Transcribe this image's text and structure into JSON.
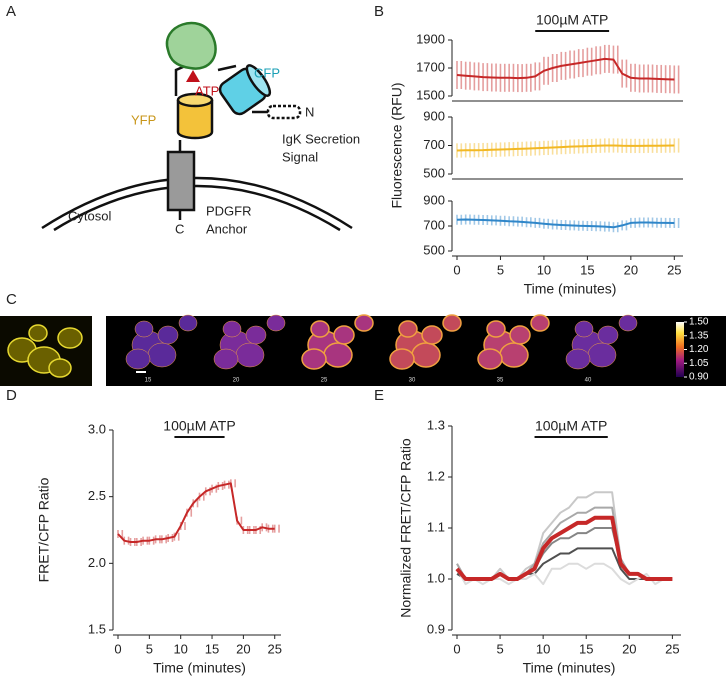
{
  "panel_labels": [
    "A",
    "B",
    "C",
    "D",
    "E"
  ],
  "diagram": {
    "atp": "ATP",
    "cfp": "CFP",
    "n_terminus": "N",
    "yfp": "YFP",
    "igk": [
      "IgK Secretion",
      "Signal"
    ],
    "cytosol": "Cytosol",
    "pdgfr": [
      "PDGFR",
      "Anchor"
    ],
    "c_terminus": "C"
  },
  "panel_c": {
    "time_labels": [
      "15",
      "20",
      "25",
      "30",
      "35",
      "40"
    ],
    "colorbar_lim": [
      0.9,
      1.5
    ],
    "colorbar_ticks": [
      {
        "value": 1.5,
        "label": "1.50"
      },
      {
        "value": 1.35,
        "label": "1.35"
      },
      {
        "value": 1.2,
        "label": "1.20"
      },
      {
        "value": 1.05,
        "label": "1.05"
      },
      {
        "value": 0.9,
        "label": "0.90"
      }
    ]
  },
  "chart_data": [
    {
      "type": "line",
      "annotation": {
        "text": "100µM ATP",
        "x": [
          9,
          17.5
        ]
      },
      "x": [
        0,
        1,
        2,
        3,
        4,
        5,
        6,
        7,
        8,
        9,
        10,
        11,
        12,
        13,
        14,
        15,
        16,
        17,
        18,
        19,
        20,
        21,
        22,
        23,
        24,
        25
      ],
      "xlim": [
        0,
        26
      ],
      "ylim": [
        1500,
        1900
      ],
      "yticks": [
        1500,
        1700,
        1900
      ],
      "series": [
        {
          "color": "#c62828",
          "values": [
            1650,
            1645,
            1640,
            1635,
            1632,
            1630,
            1630,
            1628,
            1630,
            1640,
            1680,
            1700,
            1715,
            1725,
            1735,
            1745,
            1755,
            1765,
            1760,
            1660,
            1630,
            1625,
            1625,
            1622,
            1620,
            1618
          ],
          "errors": [
            100,
            100,
            100,
            100,
            100,
            100,
            100,
            100,
            100,
            100,
            100,
            100,
            100,
            100,
            100,
            100,
            100,
            100,
            100,
            100,
            100,
            100,
            100,
            100,
            100,
            100
          ]
        }
      ]
    },
    {
      "type": "line",
      "ylabel": "Fluorescence (RFU)",
      "x": [
        0,
        1,
        2,
        3,
        4,
        5,
        6,
        7,
        8,
        9,
        10,
        11,
        12,
        13,
        14,
        15,
        16,
        17,
        18,
        19,
        20,
        21,
        22,
        23,
        24,
        25
      ],
      "xlim": [
        0,
        26
      ],
      "ylim": [
        500,
        900
      ],
      "yticks": [
        500,
        700,
        900
      ],
      "series": [
        {
          "color": "#f2b824",
          "values": [
            665,
            666,
            667,
            668,
            670,
            672,
            674,
            676,
            678,
            680,
            683,
            686,
            689,
            692,
            694,
            696,
            698,
            700,
            700,
            698,
            697,
            697,
            698,
            698,
            699,
            700
          ],
          "errors": [
            50,
            50,
            50,
            50,
            50,
            50,
            50,
            50,
            50,
            50,
            50,
            50,
            50,
            50,
            50,
            50,
            50,
            50,
            50,
            50,
            50,
            50,
            50,
            50,
            50,
            50
          ]
        }
      ]
    },
    {
      "type": "line",
      "xlabel": "Time (minutes)",
      "x": [
        0,
        1,
        2,
        3,
        4,
        5,
        6,
        7,
        8,
        9,
        10,
        11,
        12,
        13,
        14,
        15,
        16,
        17,
        18,
        19,
        20,
        21,
        22,
        23,
        24,
        25
      ],
      "xlim": [
        0,
        26
      ],
      "xticks": [
        0,
        5,
        10,
        15,
        20,
        25
      ],
      "ylim": [
        500,
        900
      ],
      "yticks": [
        500,
        700,
        900
      ],
      "series": [
        {
          "color": "#2f86c9",
          "values": [
            750,
            752,
            750,
            748,
            745,
            742,
            738,
            735,
            730,
            725,
            718,
            712,
            708,
            705,
            702,
            700,
            698,
            695,
            690,
            705,
            725,
            728,
            728,
            726,
            725,
            724
          ],
          "errors": [
            40,
            40,
            40,
            40,
            40,
            40,
            40,
            40,
            40,
            40,
            40,
            40,
            40,
            40,
            40,
            40,
            40,
            40,
            40,
            40,
            40,
            40,
            40,
            40,
            40,
            40
          ]
        }
      ]
    },
    {
      "type": "line",
      "ylabel": "FRET/CFP Ratio",
      "xlabel": "Time (minutes)",
      "annotation": {
        "text": "100µM ATP",
        "x": [
          9,
          17
        ]
      },
      "x": [
        0,
        1,
        2,
        3,
        4,
        5,
        6,
        7,
        8,
        9,
        10,
        11,
        12,
        13,
        14,
        15,
        16,
        17,
        18,
        19,
        20,
        21,
        22,
        23,
        24,
        25
      ],
      "xlim": [
        0,
        26
      ],
      "xticks": [
        0,
        5,
        10,
        15,
        20,
        25
      ],
      "ylim": [
        1.5,
        3.0
      ],
      "yticks": [
        {
          "value": 1.5,
          "label": "1.5"
        },
        {
          "value": 2.0,
          "label": "2.0"
        },
        {
          "value": 2.5,
          "label": "2.5"
        },
        {
          "value": 3.0,
          "label": "3.0"
        }
      ],
      "series": [
        {
          "color": "#c62828",
          "values": [
            2.22,
            2.17,
            2.16,
            2.16,
            2.17,
            2.17,
            2.18,
            2.18,
            2.19,
            2.2,
            2.28,
            2.38,
            2.45,
            2.5,
            2.54,
            2.56,
            2.58,
            2.59,
            2.6,
            2.32,
            2.25,
            2.25,
            2.25,
            2.27,
            2.26,
            2.26
          ],
          "errors": [
            0.03,
            0.03,
            0.03,
            0.03,
            0.03,
            0.03,
            0.03,
            0.03,
            0.03,
            0.03,
            0.03,
            0.03,
            0.03,
            0.03,
            0.03,
            0.03,
            0.03,
            0.03,
            0.03,
            0.03,
            0.03,
            0.03,
            0.03,
            0.03,
            0.03,
            0.03
          ]
        }
      ]
    },
    {
      "type": "line",
      "ylabel": "Normalized FRET/CFP Ratio",
      "xlabel": "Time (minutes)",
      "annotation": {
        "text": "100µM ATP",
        "x": [
          9,
          17.5
        ]
      },
      "x": [
        0,
        1,
        2,
        3,
        4,
        5,
        6,
        7,
        8,
        9,
        10,
        11,
        12,
        13,
        14,
        15,
        16,
        17,
        18,
        19,
        20,
        21,
        22,
        23,
        24,
        25
      ],
      "xlim": [
        0,
        26
      ],
      "xticks": [
        0,
        5,
        10,
        15,
        20,
        25
      ],
      "ylim": [
        0.9,
        1.3
      ],
      "yticks": [
        0.9,
        {
          "value": 1.0,
          "label": "1.0"
        },
        1.1,
        1.2,
        1.3
      ],
      "series": [
        {
          "color": "#c8c8c8",
          "values": [
            1.03,
            1.0,
            1.0,
            1.0,
            1.0,
            1.02,
            1.0,
            1.0,
            1.02,
            1.03,
            1.09,
            1.11,
            1.13,
            1.14,
            1.16,
            1.16,
            1.17,
            1.17,
            1.17,
            1.04,
            1.01,
            1.01,
            1.0,
            1.0,
            1.0,
            1.0
          ]
        },
        {
          "color": "#a8a8a8",
          "values": [
            1.03,
            1.0,
            1.0,
            1.0,
            1.0,
            1.01,
            1.0,
            1.0,
            1.01,
            1.03,
            1.07,
            1.09,
            1.11,
            1.12,
            1.13,
            1.13,
            1.14,
            1.14,
            1.14,
            1.04,
            1.01,
            1.01,
            1.0,
            1.0,
            1.0,
            1.0
          ]
        },
        {
          "color": "#858585",
          "values": [
            1.02,
            1.0,
            1.0,
            1.0,
            1.0,
            1.01,
            1.0,
            1.0,
            1.01,
            1.02,
            1.05,
            1.07,
            1.08,
            1.08,
            1.09,
            1.09,
            1.1,
            1.1,
            1.1,
            1.03,
            1.01,
            1.01,
            1.0,
            1.0,
            1.0,
            1.0
          ]
        },
        {
          "color": "#505050",
          "values": [
            1.01,
            1.0,
            1.0,
            1.0,
            1.0,
            1.01,
            1.0,
            1.0,
            1.01,
            1.01,
            1.03,
            1.04,
            1.05,
            1.05,
            1.06,
            1.06,
            1.06,
            1.06,
            1.06,
            1.02,
            1.0,
            1.0,
            1.0,
            1.0,
            1.0,
            1.0
          ]
        },
        {
          "color": "#dcdcdc",
          "values": [
            1.02,
            0.99,
            1.0,
            0.99,
            1.0,
            1.0,
            0.99,
            1.0,
            1.0,
            1.01,
            0.99,
            1.02,
            1.02,
            1.03,
            1.03,
            1.02,
            1.03,
            1.03,
            1.02,
            1.0,
            0.99,
            1.0,
            1.01,
            0.99,
            1.0,
            1.0
          ]
        },
        {
          "color": "#c62828",
          "values": [
            1.02,
            1.0,
            1.0,
            1.0,
            1.0,
            1.01,
            1.0,
            1.0,
            1.01,
            1.02,
            1.06,
            1.08,
            1.09,
            1.1,
            1.11,
            1.11,
            1.12,
            1.12,
            1.12,
            1.03,
            1.01,
            1.01,
            1.0,
            1.0,
            1.0,
            1.0
          ],
          "width": 4
        }
      ]
    }
  ]
}
